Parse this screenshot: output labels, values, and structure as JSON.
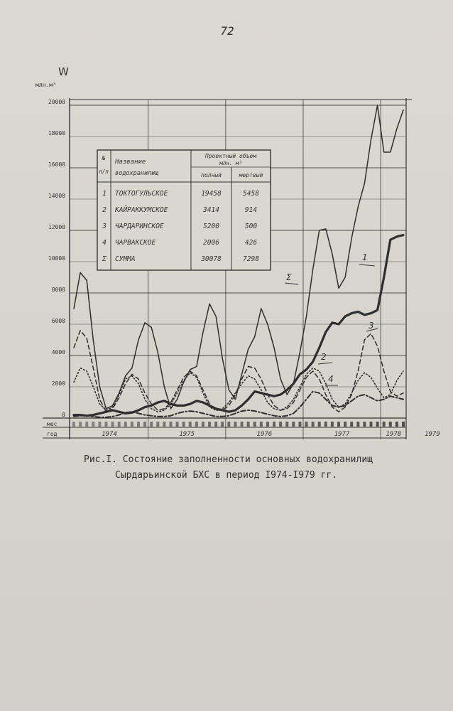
{
  "page_number": "72",
  "caption": {
    "line1": "Рис.I. Состояние заполненности основных водохранилищ",
    "line2": "Сырдарьинской БХС в период I974-I979 гг."
  },
  "chart_data": {
    "type": "line",
    "ylabel": "W",
    "yunit": "млн.м³",
    "ylim": [
      0,
      20000
    ],
    "yticks": [
      0,
      2000,
      4000,
      6000,
      8000,
      10000,
      12000,
      14000,
      16000,
      18000,
      20000
    ],
    "ytick_labels": [
      "0",
      "2000",
      "4000",
      "6000",
      "8000",
      "10000",
      "12000",
      "14000",
      "16000",
      "18000",
      "20000"
    ],
    "x_month_row_label": "мес",
    "x_year_row_label": "год",
    "years": [
      "1974",
      "1975",
      "1976",
      "1977",
      "1978",
      "1979"
    ],
    "months_per_year": 12,
    "series": [
      {
        "name": "Σ",
        "style": "solid-thin",
        "values": [
          7000,
          9300,
          8800,
          5000,
          2000,
          600,
          800,
          1600,
          2700,
          3200,
          5000,
          6100,
          5800,
          4200,
          2000,
          600,
          1200,
          2300,
          3100,
          3300,
          5500,
          7300,
          6500,
          3800,
          1800,
          1200,
          2800,
          4400,
          5200,
          7000,
          6000,
          4500,
          2500,
          1500,
          2200,
          4200,
          6500,
          9500,
          12000,
          12100,
          10500,
          8300,
          9000,
          11500,
          13500,
          15000,
          17800,
          20000,
          17000,
          17000,
          18500,
          19700
        ]
      },
      {
        "name": "1",
        "style": "solid-thick",
        "values": [
          200,
          200,
          150,
          200,
          300,
          400,
          500,
          400,
          300,
          350,
          500,
          700,
          800,
          1000,
          1100,
          900,
          800,
          800,
          900,
          1100,
          1000,
          800,
          600,
          500,
          400,
          500,
          800,
          1200,
          1700,
          1600,
          1500,
          1400,
          1500,
          1800,
          2200,
          2800,
          3100,
          3600,
          4500,
          5500,
          6100,
          6000,
          6500,
          6700,
          6800,
          6600,
          6700,
          6900,
          9000,
          11400,
          11600,
          11700
        ]
      },
      {
        "name": "2",
        "style": "dotted",
        "values": [
          2300,
          3200,
          3000,
          2000,
          900,
          500,
          700,
          1500,
          2500,
          2700,
          2200,
          1200,
          600,
          400,
          500,
          900,
          1600,
          2400,
          2900,
          2600,
          1600,
          700,
          500,
          600,
          1000,
          1600,
          2200,
          2700,
          2500,
          1800,
          1000,
          600,
          500,
          700,
          1200,
          2000,
          2800,
          3200,
          3000,
          2200,
          1200,
          700,
          900,
          1600,
          2400,
          2900,
          2600,
          1900,
          1300,
          1500,
          2400,
          3000
        ]
      },
      {
        "name": "3",
        "style": "dashed",
        "values": [
          4500,
          5600,
          5100,
          3200,
          1200,
          400,
          600,
          1300,
          2200,
          2800,
          2500,
          1600,
          900,
          500,
          600,
          1000,
          1800,
          2600,
          3000,
          2700,
          1800,
          900,
          500,
          500,
          800,
          1500,
          2500,
          3300,
          3200,
          2500,
          1500,
          800,
          500,
          600,
          1000,
          1800,
          2600,
          3000,
          2500,
          1500,
          700,
          400,
          700,
          1500,
          3000,
          5000,
          5400,
          4600,
          3000,
          1700,
          1400,
          1600
        ]
      },
      {
        "name": "4",
        "style": "dash-dot",
        "values": [
          100,
          150,
          150,
          100,
          50,
          50,
          100,
          200,
          350,
          400,
          300,
          200,
          150,
          100,
          100,
          150,
          300,
          400,
          450,
          400,
          300,
          200,
          100,
          100,
          150,
          300,
          450,
          500,
          450,
          350,
          250,
          150,
          100,
          150,
          300,
          700,
          1200,
          1700,
          1600,
          1200,
          800,
          700,
          800,
          1100,
          1400,
          1500,
          1300,
          1100,
          1200,
          1400,
          1300,
          1200
        ]
      }
    ],
    "series_labels": [
      "1",
      "2",
      "3",
      "4",
      "Σ"
    ],
    "legend_table": {
      "headers": {
        "num_top": "№",
        "num_bot": "п/п",
        "name_top": "Название",
        "name_bot": "водохранилищ",
        "volume_top": "Проектный объем",
        "volume_unit": "млн. м³",
        "full": "полный",
        "dead": "мертвый"
      },
      "rows": [
        {
          "num": "1",
          "name": "ТОКТОГУЛЬСКОЕ",
          "full": "19458",
          "dead": "5458"
        },
        {
          "num": "2",
          "name": "КАЙРАККУМСКОЕ",
          "full": "3414",
          "dead": "914"
        },
        {
          "num": "3",
          "name": "ЧАРДАРИНСКОЕ",
          "full": "5200",
          "dead": "500"
        },
        {
          "num": "4",
          "name": "ЧАРВАКСКОЕ",
          "full": "2006",
          "dead": "426"
        },
        {
          "num": "Σ",
          "name": "СУММА",
          "full": "30078",
          "dead": "7298"
        }
      ]
    }
  }
}
